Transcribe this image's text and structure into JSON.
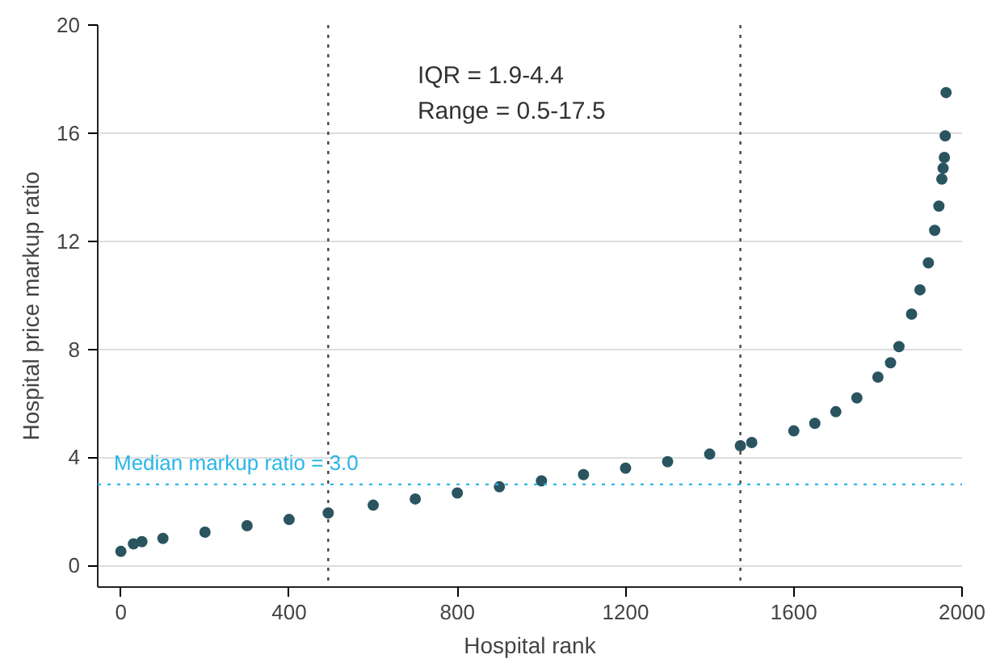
{
  "chart_data": {
    "type": "scatter",
    "xlabel": "Hospital rank",
    "ylabel": "Hospital price markup ratio",
    "annotations": [
      "IQR = 1.9-4.4",
      "Range = 0.5-17.5"
    ],
    "series": [
      {
        "color": "#2a5560",
        "x": [
          0,
          30,
          50,
          100,
          200,
          300,
          400,
          493,
          600,
          700,
          800,
          900,
          1000,
          1100,
          1200,
          1300,
          1400,
          1473,
          1500,
          1600,
          1650,
          1700,
          1750,
          1800,
          1830,
          1850,
          1880,
          1900,
          1920,
          1935,
          1945,
          1952,
          1955,
          1958,
          1960,
          1962
        ],
        "values": [
          0.52,
          0.8,
          0.88,
          1.0,
          1.23,
          1.47,
          1.7,
          1.94,
          2.23,
          2.46,
          2.68,
          2.91,
          3.13,
          3.36,
          3.6,
          3.84,
          4.12,
          4.43,
          4.55,
          4.98,
          5.26,
          5.69,
          6.2,
          6.97,
          7.5,
          8.1,
          9.3,
          10.2,
          11.2,
          12.4,
          13.3,
          14.3,
          14.7,
          15.1,
          15.9,
          17.5
        ]
      }
    ],
    "marker": "circle",
    "xlim": [
      -55,
      2000
    ],
    "ylim": [
      -0.8,
      20
    ],
    "xticks": [
      0,
      400,
      800,
      1200,
      1600,
      2000
    ],
    "yticks": [
      0,
      4,
      8,
      12,
      16,
      20
    ],
    "grid": "y",
    "ref_lines": [
      {
        "axis": "x",
        "value": 493,
        "color": "#444444",
        "line_style": "dotted"
      },
      {
        "axis": "x",
        "value": 1473,
        "color": "#444444",
        "line_style": "dotted"
      },
      {
        "axis": "y",
        "value": 3.0,
        "label": "Median markup ratio = 3.0",
        "color": "#29b6e8",
        "line_style": "dotted"
      }
    ]
  }
}
